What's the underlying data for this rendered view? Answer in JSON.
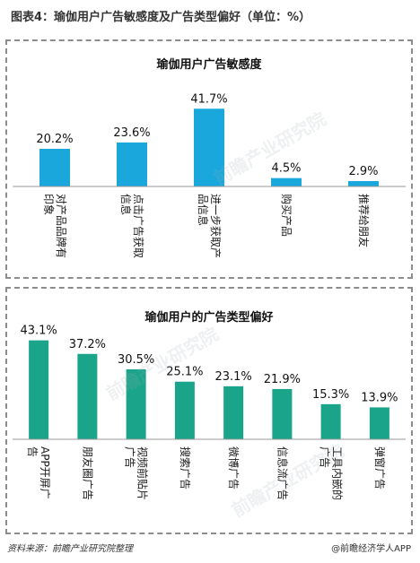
{
  "figure_title": "图表4：瑜伽用户广告敏感度及广告类型偏好（单位：%）",
  "source_text": "资料来源：前瞻产业研究院整理",
  "credit_text": "@前瞻经济学人APP",
  "watermark_text": "前瞻产业研究院",
  "colors": {
    "bar_top": "#1aa8dc",
    "bar_bottom": "#1aa58a",
    "axis": "#999999"
  },
  "chart_data": [
    {
      "type": "bar",
      "title": "瑜伽用户广告敏感度",
      "categories": [
        [
          "对产品品牌有",
          "印象"
        ],
        [
          "点击广告获取",
          "信息"
        ],
        [
          "进一步获取产",
          "品信息"
        ],
        [
          "购买产品"
        ],
        [
          "推荐给朋友"
        ]
      ],
      "values": [
        20.2,
        23.6,
        41.7,
        4.5,
        2.9
      ],
      "value_labels": [
        "20.2%",
        "23.6%",
        "41.7%",
        "4.5%",
        "2.9%"
      ],
      "ylim": [
        0,
        50
      ],
      "grid": false,
      "legend": "none"
    },
    {
      "type": "bar",
      "title": "瑜伽用户的广告类型偏好",
      "categories": [
        [
          "APP开屏广",
          "告"
        ],
        [
          "朋友圈广告"
        ],
        [
          "视频前贴片",
          "广告"
        ],
        [
          "搜索广告"
        ],
        [
          "微博广告"
        ],
        [
          "信息流广告"
        ],
        [
          "工具内嵌的",
          "广告"
        ],
        [
          "弹窗广告"
        ]
      ],
      "values": [
        43.1,
        37.2,
        30.5,
        25.1,
        23.1,
        21.9,
        15.3,
        13.9
      ],
      "value_labels": [
        "43.1%",
        "37.2%",
        "30.5%",
        "25.1%",
        "23.1%",
        "21.9%",
        "15.3%",
        "13.9%"
      ],
      "ylim": [
        0,
        50
      ],
      "grid": false,
      "legend": "none"
    }
  ]
}
